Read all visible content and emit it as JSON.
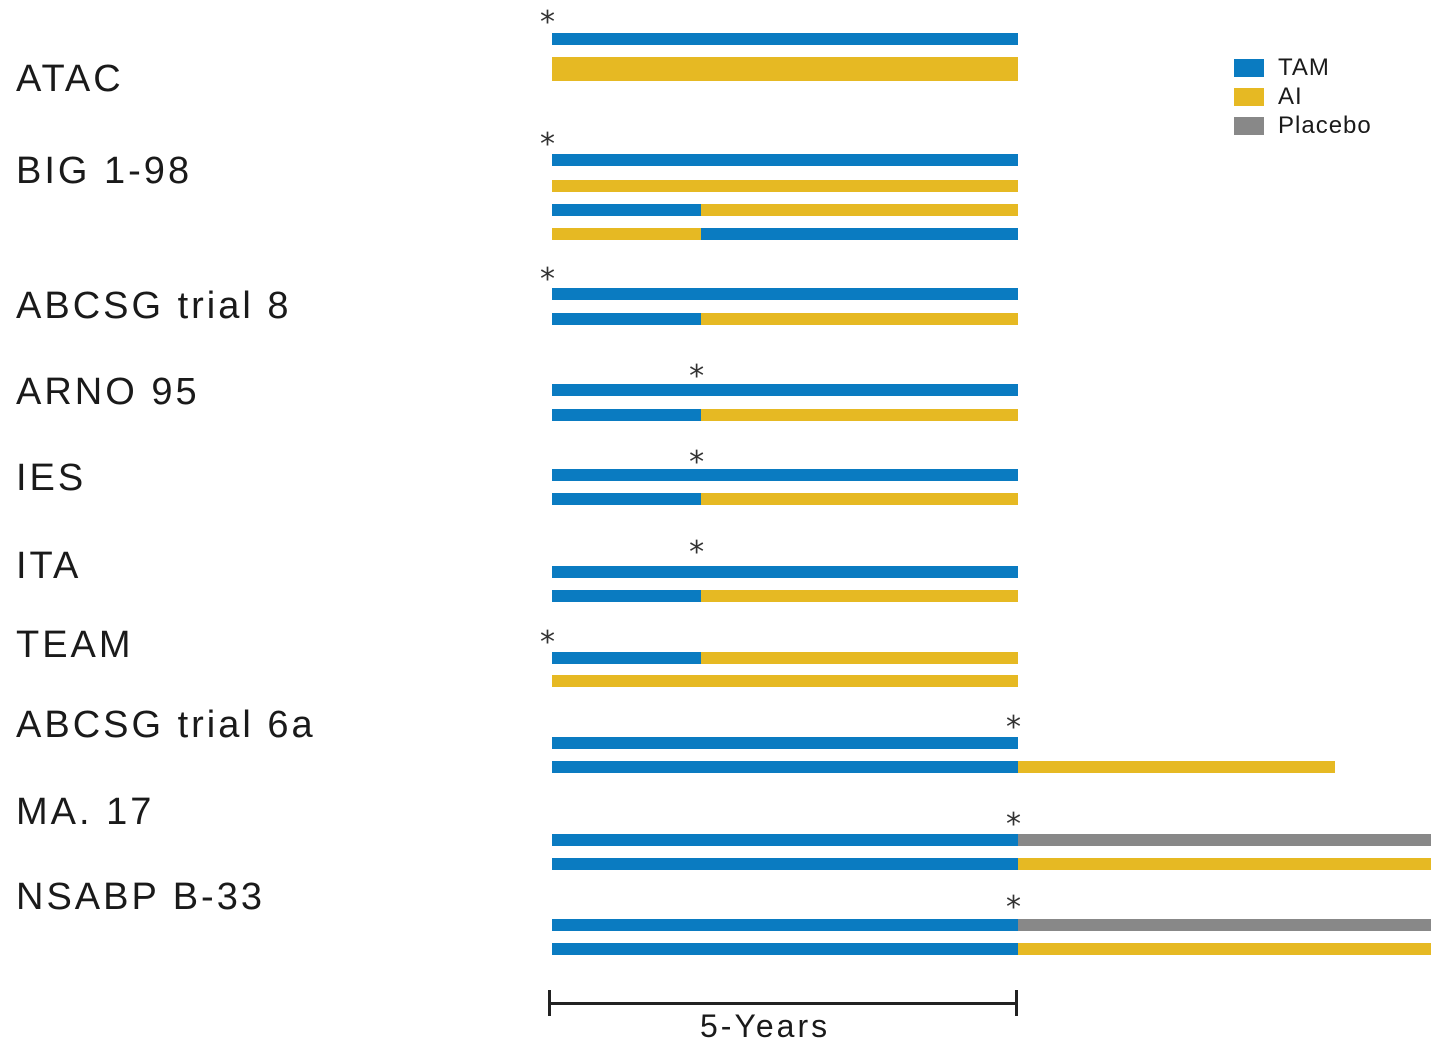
{
  "colors": {
    "TAM": "#0a7bc1",
    "AI": "#e6b923",
    "Placebo": "#888888"
  },
  "legend": [
    {
      "key": "TAM",
      "label": "TAM"
    },
    {
      "key": "AI",
      "label": "AI"
    },
    {
      "key": "Placebo",
      "label": "Placebo"
    }
  ],
  "scale_label": "5-Years",
  "star_symbol": "*",
  "trials": [
    {
      "name": "ATAC",
      "star_at_years": 0,
      "arms": [
        [
          [
            "TAM",
            0,
            5
          ]
        ],
        [
          [
            "TAM",
            0,
            5
          ],
          [
            "AI",
            0,
            5
          ]
        ],
        [
          [
            "AI",
            0,
            5
          ]
        ]
      ]
    },
    {
      "name": "BIG 1-98",
      "star_at_years": 0,
      "arms": [
        [
          [
            "TAM",
            0,
            5
          ]
        ],
        [
          [
            "AI",
            0,
            5
          ]
        ],
        [
          [
            "TAM",
            0,
            1.6
          ],
          [
            "AI",
            1.6,
            5
          ]
        ],
        [
          [
            "AI",
            0,
            1.6
          ],
          [
            "TAM",
            1.6,
            5
          ]
        ]
      ]
    },
    {
      "name": "ABCSG trial 8",
      "star_at_years": 0,
      "arms": [
        [
          [
            "TAM",
            0,
            5
          ]
        ],
        [
          [
            "TAM",
            0,
            1.6
          ],
          [
            "AI",
            1.6,
            5
          ]
        ]
      ]
    },
    {
      "name": "ARNO 95",
      "star_at_years": 1.6,
      "arms": [
        [
          [
            "TAM",
            0,
            5
          ]
        ],
        [
          [
            "TAM",
            0,
            1.6
          ],
          [
            "AI",
            1.6,
            5
          ]
        ]
      ]
    },
    {
      "name": "IES",
      "star_at_years": 1.6,
      "arms": [
        [
          [
            "TAM",
            0,
            5
          ]
        ],
        [
          [
            "TAM",
            0,
            1.6
          ],
          [
            "AI",
            1.6,
            5
          ]
        ]
      ]
    },
    {
      "name": "ITA",
      "star_at_years": 1.6,
      "arms": [
        [
          [
            "TAM",
            0,
            5
          ]
        ],
        [
          [
            "TAM",
            0,
            1.6
          ],
          [
            "AI",
            1.6,
            5
          ]
        ]
      ]
    },
    {
      "name": "TEAM",
      "star_at_years": 0,
      "arms": [
        [
          [
            "TAM",
            0,
            1.6
          ],
          [
            "AI",
            1.6,
            5
          ]
        ],
        [
          [
            "AI",
            0,
            5
          ]
        ]
      ]
    },
    {
      "name": "ABCSG trial 6a",
      "star_at_years": 5,
      "arms": [
        [
          [
            "TAM",
            0,
            5
          ]
        ],
        [
          [
            "TAM",
            0,
            5
          ],
          [
            "AI",
            5,
            8.4
          ]
        ]
      ]
    },
    {
      "name": "MA. 17",
      "star_at_years": 5,
      "arms": [
        [
          [
            "TAM",
            0,
            5
          ],
          [
            "Placebo",
            5,
            10
          ]
        ],
        [
          [
            "TAM",
            0,
            5
          ],
          [
            "AI",
            5,
            10
          ]
        ]
      ]
    },
    {
      "name": "NSABP B-33",
      "star_at_years": 5,
      "arms": [
        [
          [
            "TAM",
            0,
            5
          ],
          [
            "Placebo",
            5,
            10
          ]
        ],
        [
          [
            "TAM",
            0,
            5
          ],
          [
            "AI",
            5,
            10
          ]
        ]
      ]
    }
  ]
}
